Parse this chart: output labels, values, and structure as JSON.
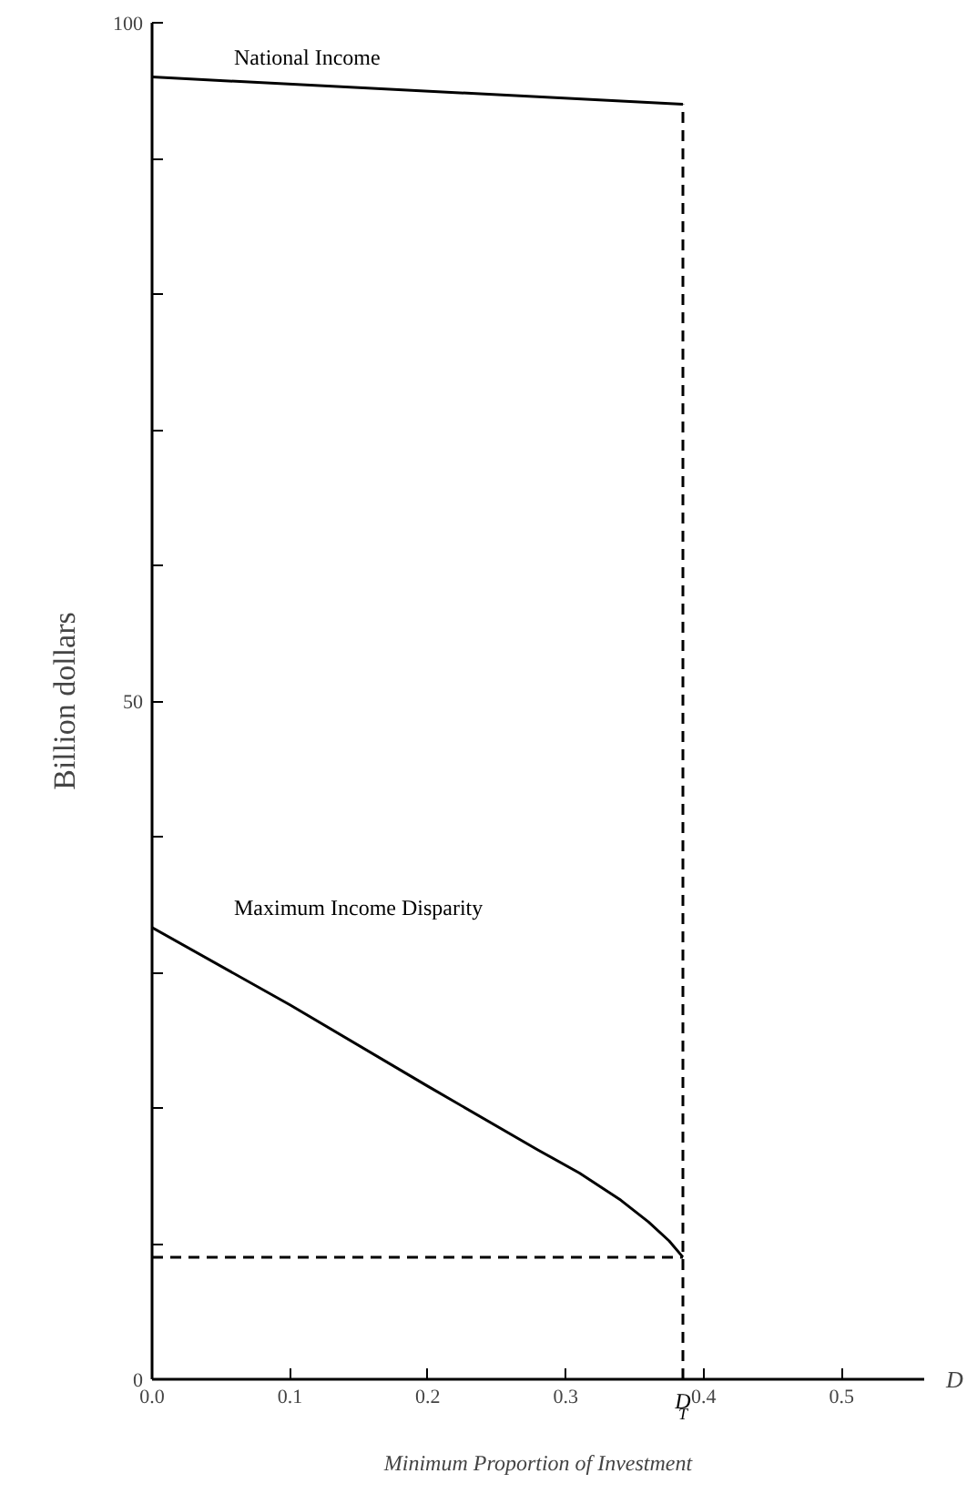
{
  "chart_data": {
    "type": "line",
    "xlabel": "Minimum Proportion of Investment",
    "ylabel": "Billion dollars",
    "xlim": [
      0,
      0.56
    ],
    "ylim": [
      0,
      100
    ],
    "xticks": [
      {
        "value": 0,
        "label": "0.0"
      },
      {
        "value": 0.1,
        "label": "0.1"
      },
      {
        "value": 0.2,
        "label": "0.2"
      },
      {
        "value": 0.3,
        "label": "0.3"
      },
      {
        "value": 0.4,
        "label": "0.4"
      },
      {
        "value": 0.5,
        "label": "0.5"
      }
    ],
    "yticks": [
      0,
      {
        "value": 10,
        "label": null
      },
      {
        "value": 20,
        "label": null
      },
      {
        "value": 30,
        "label": null
      },
      {
        "value": 40,
        "label": null
      },
      50,
      {
        "value": 60,
        "label": null
      },
      {
        "value": 70,
        "label": null
      },
      {
        "value": 80,
        "label": null
      },
      {
        "value": 90,
        "label": null
      },
      100
    ],
    "grid": false,
    "marker": "none",
    "series": [
      {
        "name": "National Income",
        "color": "#000000",
        "x": [
          0,
          0.385
        ],
        "values": [
          96,
          94
        ]
      },
      {
        "name": "Maximum Income Disparity",
        "color": "#000000",
        "x": [
          0,
          0.1,
          0.2,
          0.28,
          0.31,
          0.34,
          0.36,
          0.375,
          0.385
        ],
        "values": [
          33.3,
          27.6,
          21.6,
          16.9,
          15.2,
          13.2,
          11.6,
          10.2,
          9.0
        ]
      },
      {
        "color": "#000000",
        "line_style": "dashed",
        "x": [
          0.385,
          0.385
        ],
        "values": [
          0,
          94
        ]
      },
      {
        "color": "#000000",
        "line_style": "dashed",
        "x": [
          0,
          0.385
        ],
        "values": [
          9.0,
          9.0
        ]
      }
    ],
    "annotations": [
      {
        "text": "D$_{T}$",
        "x": 0.385,
        "y": 0
      },
      "D"
    ]
  }
}
